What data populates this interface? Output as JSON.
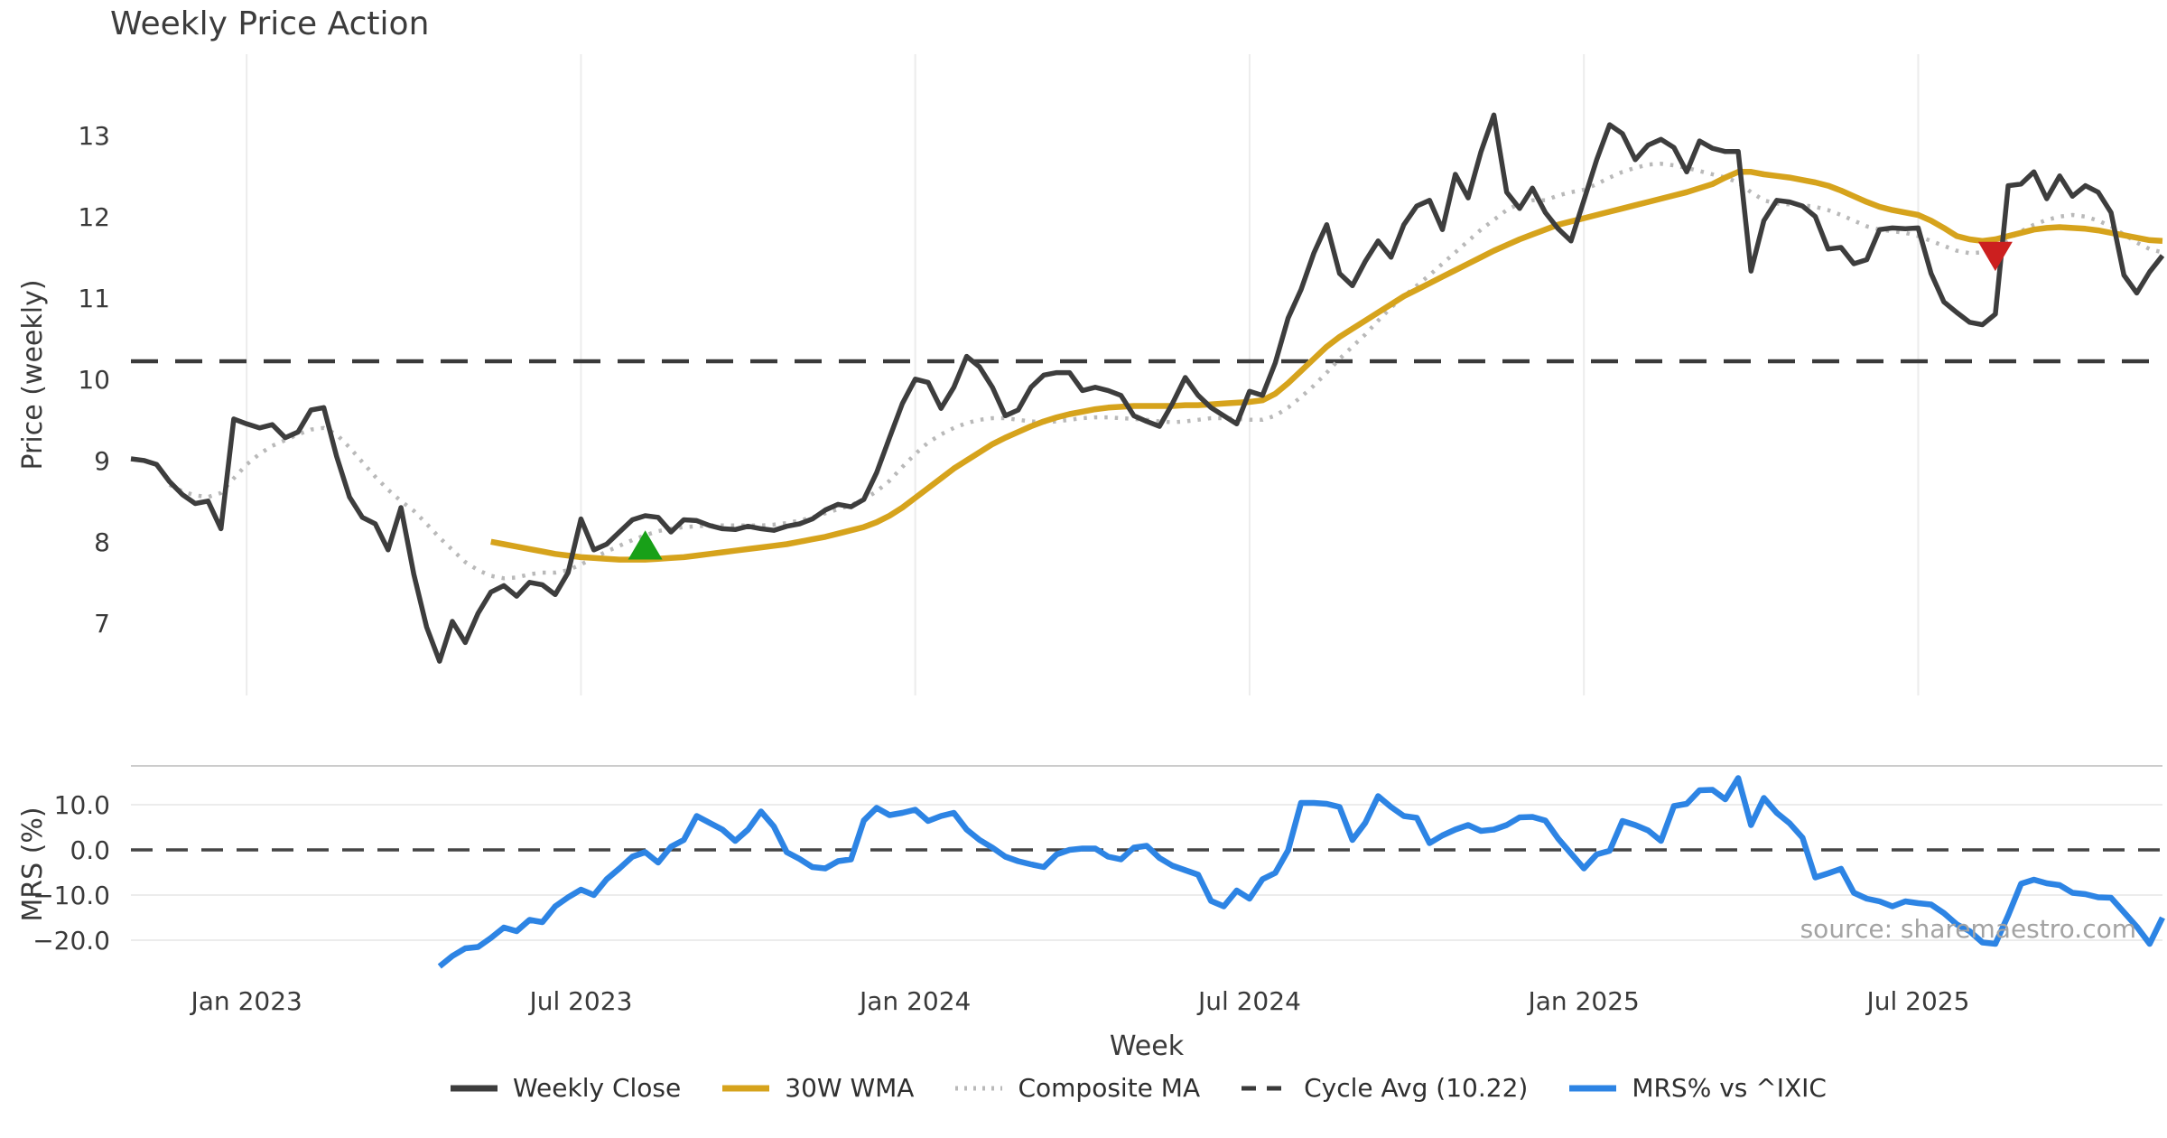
{
  "title": "Weekly Price Action",
  "source_text": "source: sharemaestro.com",
  "colors": {
    "weekly_close": "#3d3d3d",
    "wma": "#d6a31c",
    "composite": "#b9b9b9",
    "cycle_avg": "#3a3a3a",
    "mrs": "#2d84e4",
    "gridline": "#ececec",
    "panel_border": "#cccccc",
    "buy_marker": "#18a018",
    "sell_marker": "#cc1f1f",
    "text": "#3a3a3a",
    "source": "#a3a3a3"
  },
  "legend": [
    {
      "label": "Weekly Close",
      "color": "#3d3d3d",
      "dash": "",
      "width": 7
    },
    {
      "label": "30W WMA",
      "color": "#d6a31c",
      "dash": "",
      "width": 7
    },
    {
      "label": "Composite MA",
      "color": "#b9b9b9",
      "dash": "3 7",
      "width": 5
    },
    {
      "label": "Cycle Avg (10.22)",
      "color": "#3a3a3a",
      "dash": "16 12",
      "width": 5
    },
    {
      "label": "MRS% vs ^IXIC",
      "color": "#2d84e4",
      "dash": "",
      "width": 7
    }
  ],
  "axes": {
    "price_label": "Price (weekly)",
    "mrs_label": "MRS (%)",
    "week_label": "Week",
    "price_ticks": [
      7,
      8,
      9,
      10,
      11,
      12,
      13
    ],
    "mrs_ticks": [
      {
        "v": 10,
        "label": "10.0"
      },
      {
        "v": 0,
        "label": "0.0"
      },
      {
        "v": -10,
        "label": "−10.0"
      },
      {
        "v": -20,
        "label": "−20.0"
      }
    ],
    "x_ticks": [
      {
        "label": "Jan 2023",
        "week": 9
      },
      {
        "label": "Jul 2023",
        "week": 35
      },
      {
        "label": "Jan 2024",
        "week": 61
      },
      {
        "label": "Jul 2024",
        "week": 87
      },
      {
        "label": "Jan 2025",
        "week": 113
      },
      {
        "label": "Jul 2025",
        "week": 139
      }
    ]
  },
  "markers": [
    {
      "type": "buy",
      "week": 40,
      "value": 7.95,
      "color": "#18a018"
    },
    {
      "type": "sell",
      "week": 145,
      "value": 11.52,
      "color": "#cc1f1f"
    }
  ],
  "chart_data": [
    {
      "type": "line",
      "panel": "price",
      "title": "Weekly Price Action",
      "xlabel": "Week",
      "ylabel": "Price (weekly)",
      "start_date": "2022-10-31",
      "interval_days": 7,
      "n_points": 159,
      "ylim": [
        6.3,
        13.7
      ],
      "cycle_avg": 10.22,
      "grid": "vertical-only",
      "legend_position": "bottom",
      "series": [
        {
          "name": "Weekly Close",
          "values": [
            9.02,
            9.0,
            8.95,
            8.74,
            8.58,
            8.47,
            8.5,
            8.16,
            9.51,
            9.45,
            9.4,
            9.44,
            9.28,
            9.35,
            9.62,
            9.65,
            9.05,
            8.55,
            8.3,
            8.22,
            7.9,
            8.42,
            7.6,
            6.95,
            6.53,
            7.02,
            6.76,
            7.12,
            7.38,
            7.46,
            7.33,
            7.5,
            7.47,
            7.35,
            7.62,
            8.28,
            7.9,
            7.97,
            8.12,
            8.27,
            8.32,
            8.3,
            8.12,
            8.27,
            8.26,
            8.2,
            8.16,
            8.15,
            8.19,
            8.16,
            8.14,
            8.19,
            8.22,
            8.28,
            8.39,
            8.46,
            8.43,
            8.52,
            8.85,
            9.28,
            9.7,
            10.0,
            9.96,
            9.64,
            9.9,
            10.28,
            10.15,
            9.9,
            9.55,
            9.62,
            9.9,
            10.05,
            10.08,
            10.08,
            9.86,
            9.9,
            9.86,
            9.8,
            9.55,
            9.48,
            9.42,
            9.7,
            10.02,
            9.8,
            9.65,
            9.55,
            9.45,
            9.85,
            9.8,
            10.2,
            10.75,
            11.1,
            11.55,
            11.9,
            11.3,
            11.15,
            11.45,
            11.7,
            11.5,
            11.9,
            12.13,
            12.2,
            11.84,
            12.52,
            12.23,
            12.8,
            13.25,
            12.3,
            12.1,
            12.35,
            12.05,
            11.85,
            11.7,
            12.2,
            12.7,
            13.13,
            13.02,
            12.7,
            12.88,
            12.95,
            12.85,
            12.55,
            12.93,
            12.84,
            12.8,
            12.8,
            11.33,
            11.95,
            12.2,
            12.18,
            12.13,
            12.0,
            11.6,
            11.62,
            11.42,
            11.47,
            11.84,
            11.86,
            11.85,
            11.86,
            11.3,
            10.95,
            10.82,
            10.7,
            10.67,
            10.8,
            12.38,
            12.4,
            12.55,
            12.22,
            12.5,
            12.25,
            12.38,
            12.3,
            12.05,
            11.28,
            11.06,
            11.32,
            11.52
          ]
        },
        {
          "name": "30W WMA",
          "values": [
            null,
            null,
            null,
            null,
            null,
            null,
            null,
            null,
            null,
            null,
            null,
            null,
            null,
            null,
            null,
            null,
            null,
            null,
            null,
            null,
            null,
            null,
            null,
            null,
            null,
            null,
            null,
            null,
            8.0,
            7.97,
            7.94,
            7.91,
            7.88,
            7.85,
            7.83,
            7.81,
            7.8,
            7.79,
            7.78,
            7.78,
            7.78,
            7.79,
            7.8,
            7.81,
            7.83,
            7.85,
            7.87,
            7.89,
            7.91,
            7.93,
            7.95,
            7.97,
            8.0,
            8.03,
            8.06,
            8.1,
            8.14,
            8.18,
            8.24,
            8.32,
            8.42,
            8.54,
            8.66,
            8.78,
            8.9,
            9.0,
            9.1,
            9.2,
            9.28,
            9.35,
            9.42,
            9.48,
            9.53,
            9.57,
            9.6,
            9.63,
            9.65,
            9.66,
            9.67,
            9.67,
            9.67,
            9.67,
            9.68,
            9.68,
            9.69,
            9.7,
            9.71,
            9.72,
            9.74,
            9.82,
            9.95,
            10.1,
            10.25,
            10.4,
            10.52,
            10.62,
            10.72,
            10.82,
            10.92,
            11.02,
            11.1,
            11.18,
            11.26,
            11.34,
            11.42,
            11.5,
            11.58,
            11.65,
            11.72,
            11.78,
            11.84,
            11.9,
            11.94,
            11.98,
            12.02,
            12.06,
            12.1,
            12.14,
            12.18,
            12.22,
            12.26,
            12.3,
            12.35,
            12.4,
            12.48,
            12.55,
            12.55,
            12.52,
            12.5,
            12.48,
            12.45,
            12.42,
            12.38,
            12.32,
            12.25,
            12.18,
            12.12,
            12.08,
            12.05,
            12.02,
            11.95,
            11.86,
            11.76,
            11.72,
            11.7,
            11.72,
            11.76,
            11.8,
            11.84,
            11.86,
            11.87,
            11.86,
            11.85,
            11.83,
            11.8,
            11.77,
            11.74,
            11.71,
            11.7
          ]
        },
        {
          "name": "Composite MA",
          "values": [
            null,
            null,
            null,
            8.7,
            8.62,
            8.57,
            8.55,
            8.6,
            8.78,
            8.95,
            9.08,
            9.18,
            9.25,
            9.32,
            9.38,
            9.4,
            9.32,
            9.16,
            8.98,
            8.8,
            8.64,
            8.5,
            8.38,
            8.22,
            8.05,
            7.9,
            7.75,
            7.65,
            7.58,
            7.55,
            7.56,
            7.6,
            7.62,
            7.62,
            7.65,
            7.72,
            7.8,
            7.88,
            7.95,
            8.02,
            8.08,
            8.13,
            8.16,
            8.18,
            8.19,
            8.2,
            8.2,
            8.2,
            8.2,
            8.2,
            8.21,
            8.23,
            8.26,
            8.3,
            8.35,
            8.4,
            8.45,
            8.52,
            8.62,
            8.75,
            8.92,
            9.08,
            9.22,
            9.32,
            9.4,
            9.46,
            9.5,
            9.52,
            9.52,
            9.5,
            9.48,
            9.47,
            9.48,
            9.5,
            9.52,
            9.53,
            9.53,
            9.52,
            9.51,
            9.5,
            9.48,
            9.47,
            9.48,
            9.5,
            9.52,
            9.52,
            9.51,
            9.5,
            9.5,
            9.55,
            9.65,
            9.78,
            9.92,
            10.08,
            10.25,
            10.4,
            10.55,
            10.72,
            10.88,
            11.02,
            11.15,
            11.28,
            11.42,
            11.56,
            11.7,
            11.84,
            11.96,
            12.08,
            12.16,
            12.2,
            12.2,
            12.26,
            12.3,
            12.33,
            12.4,
            12.48,
            12.55,
            12.6,
            12.64,
            12.65,
            12.63,
            12.6,
            12.56,
            12.52,
            12.48,
            12.42,
            12.3,
            12.2,
            12.16,
            12.15,
            12.14,
            12.12,
            12.08,
            12.02,
            11.95,
            11.88,
            11.84,
            11.82,
            11.8,
            11.76,
            11.7,
            11.64,
            11.58,
            11.55,
            11.56,
            11.62,
            11.72,
            11.82,
            11.9,
            11.96,
            12.0,
            12.02,
            12.0,
            11.95,
            11.88,
            11.78,
            11.68,
            11.6,
            11.56
          ]
        }
      ]
    },
    {
      "type": "line",
      "panel": "mrs",
      "xlabel": "Week",
      "ylabel": "MRS (%)",
      "start_date": "2022-10-31",
      "interval_days": 7,
      "n_points": 159,
      "ylim": [
        -27,
        18.5
      ],
      "zero_line": 0.0,
      "grid": "horizontal-only",
      "series": [
        {
          "name": "MRS% vs ^IXIC",
          "values": [
            null,
            null,
            null,
            null,
            null,
            null,
            null,
            null,
            null,
            null,
            null,
            null,
            null,
            null,
            null,
            null,
            null,
            null,
            null,
            null,
            null,
            null,
            null,
            null,
            -25.8,
            -23.5,
            -21.8,
            -21.5,
            -19.5,
            -17.2,
            -18.0,
            -15.5,
            -16.0,
            -12.5,
            -10.5,
            -8.8,
            -10.0,
            -6.5,
            -4.1,
            -1.5,
            -0.5,
            -2.8,
            0.7,
            2.2,
            7.5,
            6.0,
            4.5,
            2.0,
            4.5,
            8.5,
            5.2,
            -0.5,
            -2.0,
            -3.8,
            -4.1,
            -2.5,
            -2.1,
            6.5,
            9.3,
            7.7,
            8.2,
            8.9,
            6.4,
            7.5,
            8.2,
            4.5,
            2.2,
            0.5,
            -1.5,
            -2.5,
            -3.2,
            -3.8,
            -1.0,
            0.0,
            0.3,
            0.3,
            -1.5,
            -2.1,
            0.5,
            0.9,
            -1.8,
            -3.5,
            -4.5,
            -5.5,
            -11.3,
            -12.5,
            -9.0,
            -10.8,
            -6.5,
            -5.1,
            -0.1,
            10.4,
            10.4,
            10.2,
            9.5,
            2.2,
            6.0,
            11.9,
            9.5,
            7.5,
            7.1,
            1.5,
            3.2,
            4.5,
            5.5,
            4.2,
            4.5,
            5.5,
            7.2,
            7.3,
            6.5,
            2.5,
            -0.8,
            -4.1,
            -1.0,
            -0.2,
            6.4,
            5.5,
            4.3,
            2.0,
            9.7,
            10.2,
            13.2,
            13.3,
            11.2,
            15.9,
            5.5,
            11.5,
            8.2,
            5.9,
            2.7,
            -6.1,
            -5.2,
            -4.2,
            -9.5,
            -10.8,
            -11.4,
            -12.5,
            -11.4,
            -11.8,
            -12.1,
            -14.0,
            -16.5,
            -18.0,
            -20.5,
            -20.8,
            -14.5,
            -7.5,
            -6.6,
            -7.4,
            -7.8,
            -9.5,
            -9.8,
            -10.5,
            -10.6,
            -13.8,
            -17.0,
            -20.8,
            -15.0
          ]
        }
      ]
    }
  ]
}
